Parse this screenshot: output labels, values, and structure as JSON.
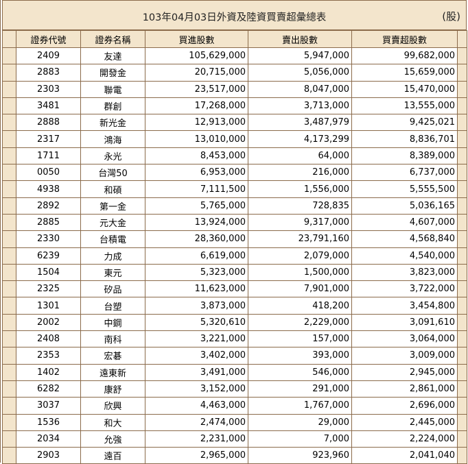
{
  "header": {
    "title": "103年04月03日外資及陸資買賣超彙總表",
    "unit": "(股)"
  },
  "columns": [
    "證券代號",
    "證券名稱",
    "買進股數",
    "賣出股數",
    "買賣超股數"
  ],
  "rows": [
    {
      "code": "2409",
      "name": "友達",
      "buy": "105,629,000",
      "sell": "5,947,000",
      "net": "99,682,000"
    },
    {
      "code": "2883",
      "name": "開發金",
      "buy": "20,715,000",
      "sell": "5,056,000",
      "net": "15,659,000"
    },
    {
      "code": "2303",
      "name": "聯電",
      "buy": "23,517,000",
      "sell": "8,047,000",
      "net": "15,470,000"
    },
    {
      "code": "3481",
      "name": "群創",
      "buy": "17,268,000",
      "sell": "3,713,000",
      "net": "13,555,000"
    },
    {
      "code": "2888",
      "name": "新光金",
      "buy": "12,913,000",
      "sell": "3,487,979",
      "net": "9,425,021"
    },
    {
      "code": "2317",
      "name": "鴻海",
      "buy": "13,010,000",
      "sell": "4,173,299",
      "net": "8,836,701"
    },
    {
      "code": "1711",
      "name": "永光",
      "buy": "8,453,000",
      "sell": "64,000",
      "net": "8,389,000"
    },
    {
      "code": "0050",
      "name": "台灣50",
      "buy": "6,953,000",
      "sell": "216,000",
      "net": "6,737,000"
    },
    {
      "code": "4938",
      "name": "和碩",
      "buy": "7,111,500",
      "sell": "1,556,000",
      "net": "5,555,500"
    },
    {
      "code": "2892",
      "name": "第一金",
      "buy": "5,765,000",
      "sell": "728,835",
      "net": "5,036,165"
    },
    {
      "code": "2885",
      "name": "元大金",
      "buy": "13,924,000",
      "sell": "9,317,000",
      "net": "4,607,000"
    },
    {
      "code": "2330",
      "name": "台積電",
      "buy": "28,360,000",
      "sell": "23,791,160",
      "net": "4,568,840"
    },
    {
      "code": "6239",
      "name": "力成",
      "buy": "6,619,000",
      "sell": "2,079,000",
      "net": "4,540,000"
    },
    {
      "code": "1504",
      "name": "東元",
      "buy": "5,323,000",
      "sell": "1,500,000",
      "net": "3,823,000"
    },
    {
      "code": "2325",
      "name": "矽品",
      "buy": "11,623,000",
      "sell": "7,901,000",
      "net": "3,722,000"
    },
    {
      "code": "1301",
      "name": "台塑",
      "buy": "3,873,000",
      "sell": "418,200",
      "net": "3,454,800"
    },
    {
      "code": "2002",
      "name": "中鋼",
      "buy": "5,320,610",
      "sell": "2,229,000",
      "net": "3,091,610"
    },
    {
      "code": "2408",
      "name": "南科",
      "buy": "3,221,000",
      "sell": "157,000",
      "net": "3,064,000"
    },
    {
      "code": "2353",
      "name": "宏碁",
      "buy": "3,402,000",
      "sell": "393,000",
      "net": "3,009,000"
    },
    {
      "code": "1402",
      "name": "遠東新",
      "buy": "3,491,000",
      "sell": "546,000",
      "net": "2,945,000"
    },
    {
      "code": "6282",
      "name": "康舒",
      "buy": "3,152,000",
      "sell": "291,000",
      "net": "2,861,000"
    },
    {
      "code": "3037",
      "name": "欣興",
      "buy": "4,463,000",
      "sell": "1,767,000",
      "net": "2,696,000"
    },
    {
      "code": "1536",
      "name": "和大",
      "buy": "2,474,000",
      "sell": "29,000",
      "net": "2,445,000"
    },
    {
      "code": "2034",
      "name": "允強",
      "buy": "2,231,000",
      "sell": "7,000",
      "net": "2,224,000"
    },
    {
      "code": "2903",
      "name": "遠百",
      "buy": "2,965,000",
      "sell": "923,960",
      "net": "2,041,040"
    }
  ]
}
